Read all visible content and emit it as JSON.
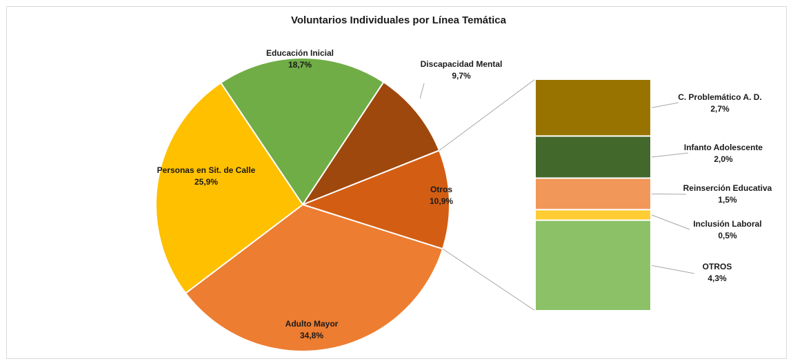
{
  "chart_data": {
    "type": "pie",
    "title": "Voluntarios Individuales por Línea Temática",
    "categories": [
      "Educación Inicial",
      "Discapacidad Mental",
      "Otros",
      "Adulto Mayor",
      "Personas en Sit. de Calle"
    ],
    "values": [
      18.7,
      9.7,
      10.9,
      34.8,
      25.9
    ],
    "value_labels": [
      "18,7%",
      "9,7%",
      "10,9%",
      "34,8%",
      "25,9%"
    ],
    "colors": [
      "#70ad47",
      "#9e480e",
      "#d35e13",
      "#ed7d31",
      "#ffc000"
    ],
    "breakout": {
      "categories": [
        "C. Problemático A. D.",
        "Infanto Adolescente",
        "Reinserción Educativa",
        "Inclusión Laboral",
        "OTROS"
      ],
      "values": [
        2.7,
        2.0,
        1.5,
        0.5,
        4.3
      ],
      "value_labels": [
        "2,7%",
        "2,0%",
        "1,5%",
        "0,5%",
        "4,3%"
      ],
      "colors": [
        "#997300",
        "#43682b",
        "#f1975a",
        "#ffcd33",
        "#8cc168"
      ]
    }
  }
}
